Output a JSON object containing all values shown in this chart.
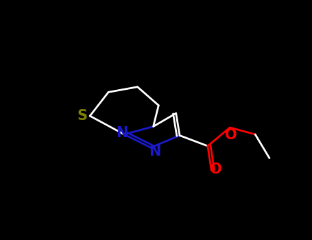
{
  "background_color": "#000000",
  "atom_colors": {
    "S": "#808000",
    "N": "#1a1acc",
    "O": "#ff0000",
    "C": "#ffffff"
  },
  "bond_color": "#ffffff",
  "figsize": [
    4.55,
    3.5
  ],
  "dpi": 100
}
